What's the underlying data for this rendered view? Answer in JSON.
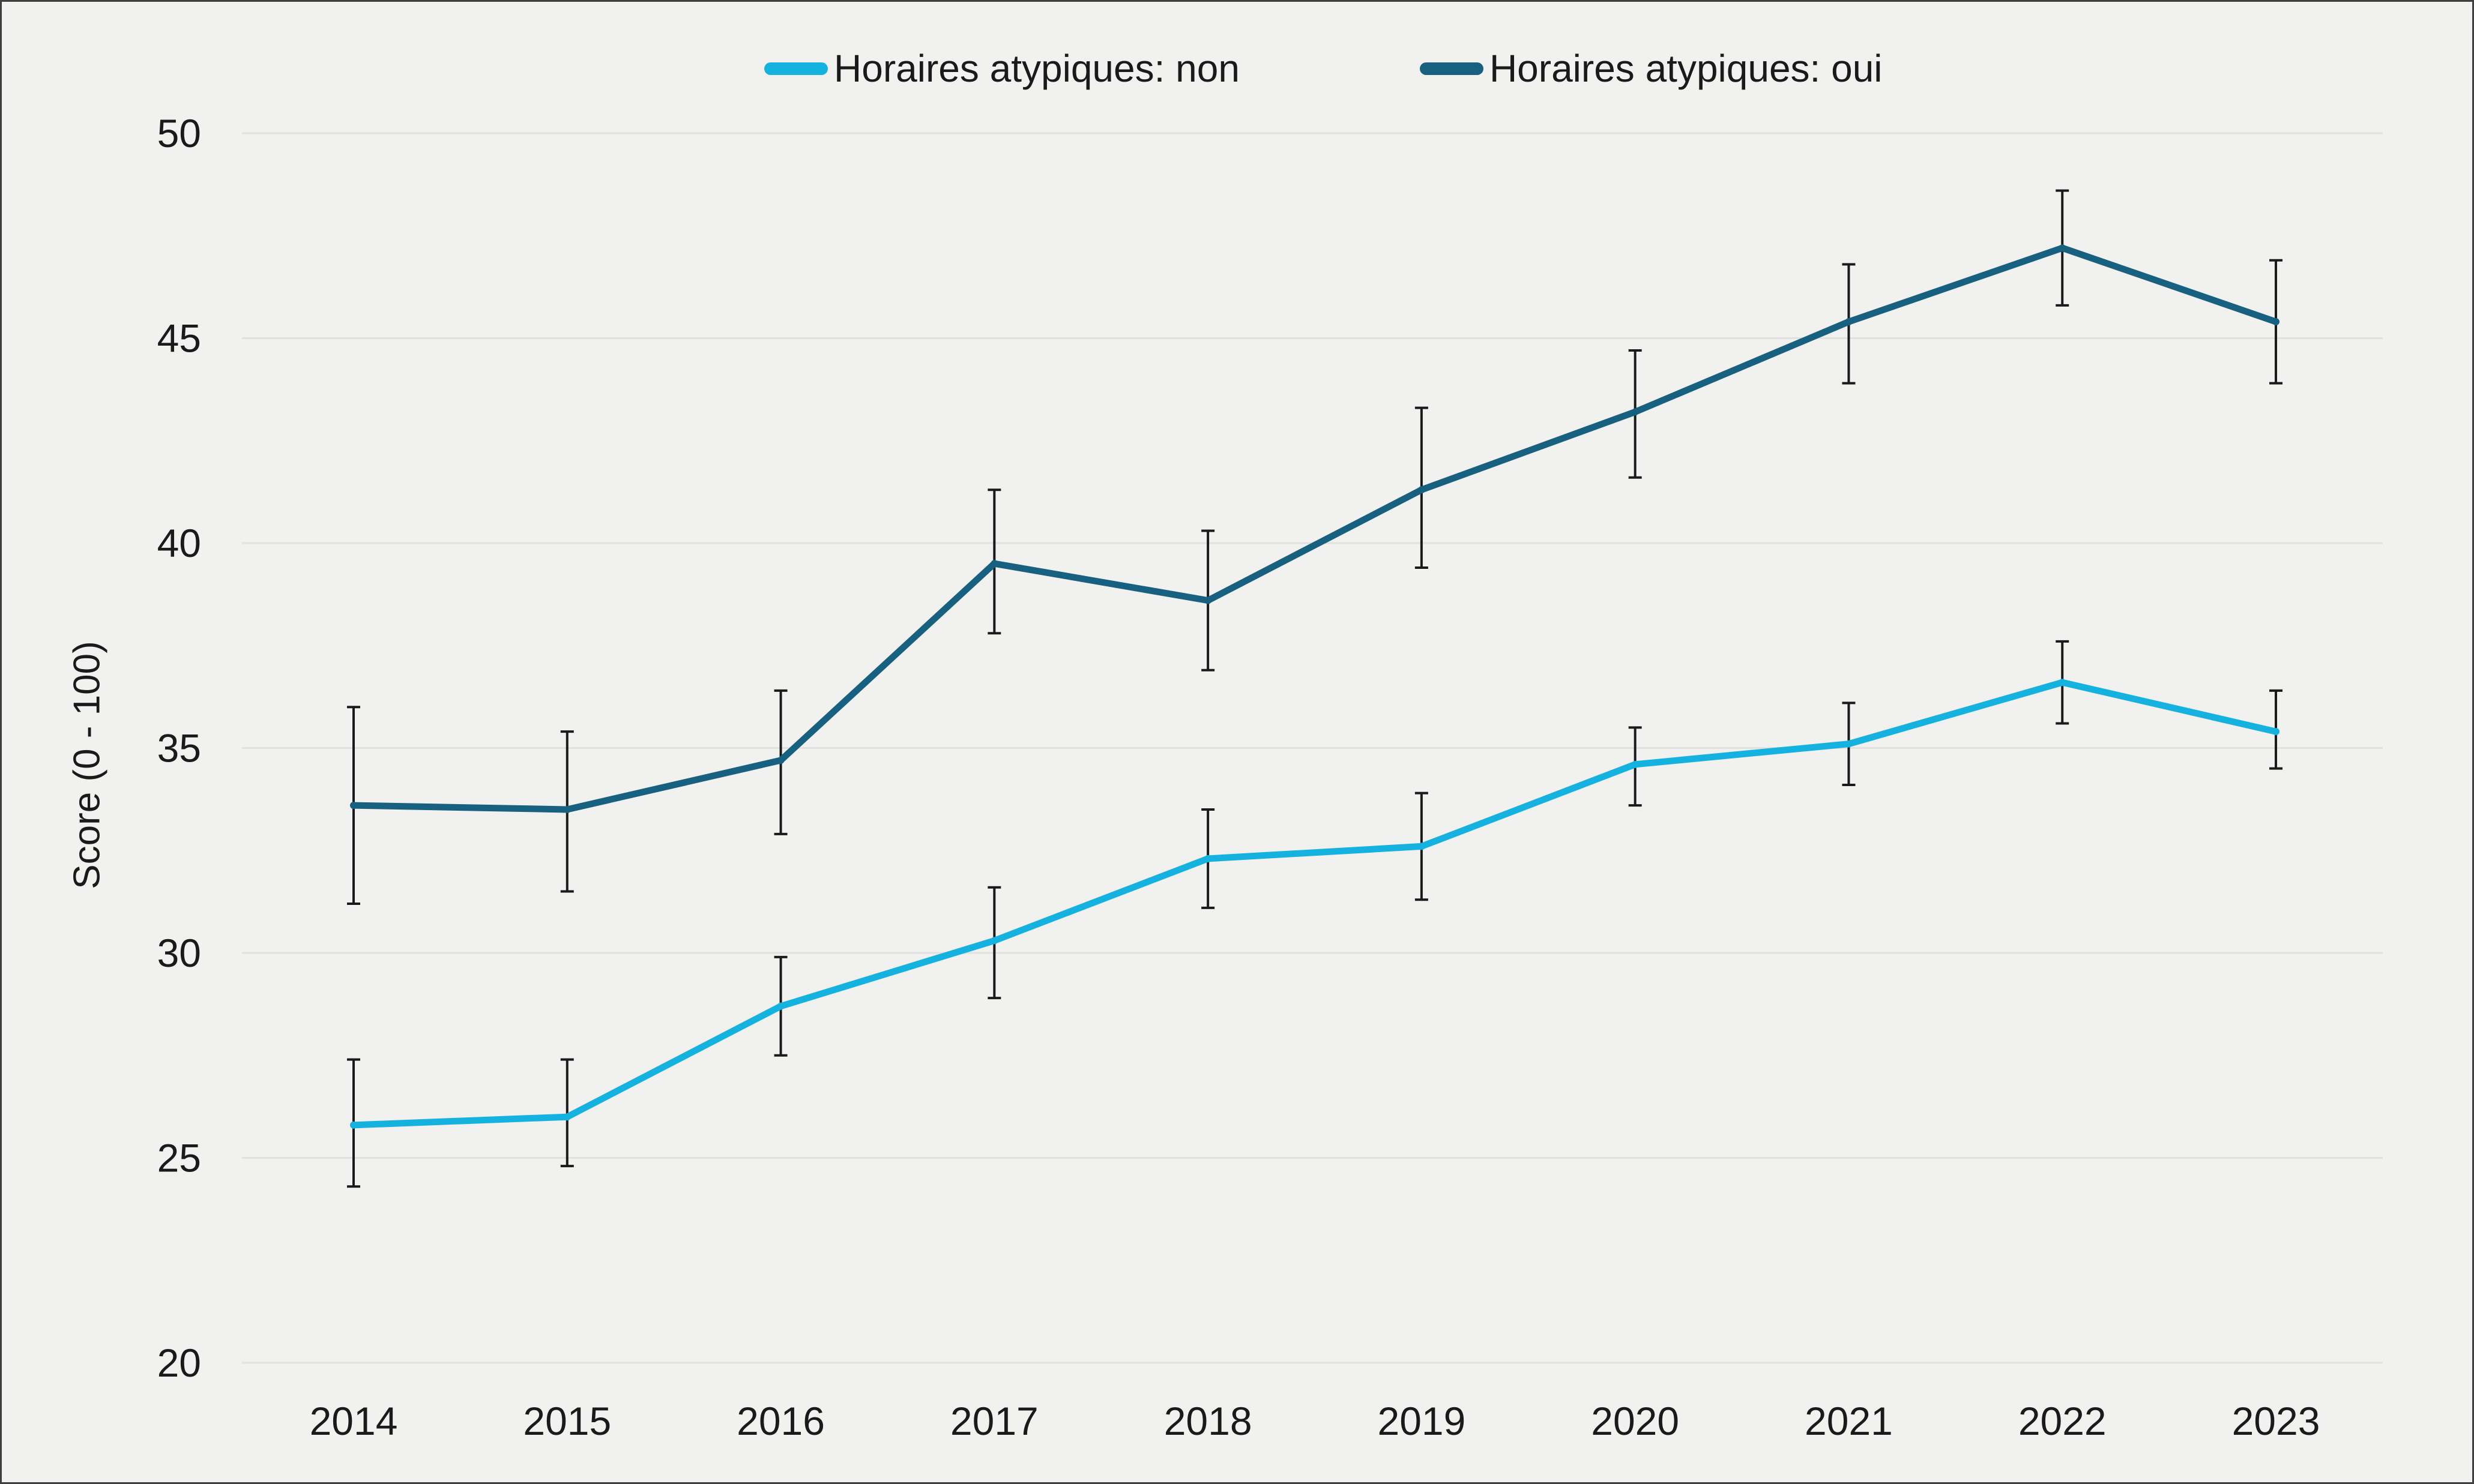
{
  "figure": {
    "background_color": "#f1f1f0",
    "border_color": "#3f3f3f",
    "gridline_color": "#e1e1df",
    "text_color": "#1a1a1a",
    "errorbar_color": "#1a1a1a"
  },
  "chart_data": {
    "type": "line",
    "title": "",
    "xlabel": "",
    "ylabel": "Score (0 - 100)",
    "x": [
      "2014",
      "2015",
      "2016",
      "2017",
      "2018",
      "2019",
      "2020",
      "2021",
      "2022",
      "2023"
    ],
    "ylim": [
      20,
      50
    ],
    "yticks": [
      "20",
      "25",
      "30",
      "35",
      "40",
      "45",
      "50"
    ],
    "grid": "horizontal",
    "legend_position": "top-center",
    "error_bars": true,
    "series": [
      {
        "name": "Horaires atypiques: non",
        "color": "#15b2e0",
        "values": [
          25.8,
          26.0,
          28.7,
          30.3,
          32.3,
          32.6,
          34.6,
          35.1,
          36.6,
          35.4
        ],
        "err_low": [
          24.3,
          24.8,
          27.5,
          28.9,
          31.1,
          31.3,
          33.6,
          34.1,
          35.6,
          34.5
        ],
        "err_high": [
          27.4,
          27.4,
          29.9,
          31.6,
          33.5,
          33.9,
          35.5,
          36.1,
          37.6,
          36.4
        ]
      },
      {
        "name": "Horaires atypiques: oui",
        "color": "#17607f",
        "values": [
          33.6,
          33.5,
          34.7,
          39.5,
          38.6,
          41.3,
          43.2,
          45.4,
          47.2,
          45.4
        ],
        "err_low": [
          31.2,
          31.5,
          32.9,
          37.8,
          36.9,
          39.4,
          41.6,
          43.9,
          45.8,
          43.9
        ],
        "err_high": [
          36.0,
          35.4,
          36.4,
          41.3,
          40.3,
          43.3,
          44.7,
          46.8,
          48.6,
          46.9
        ]
      }
    ]
  }
}
